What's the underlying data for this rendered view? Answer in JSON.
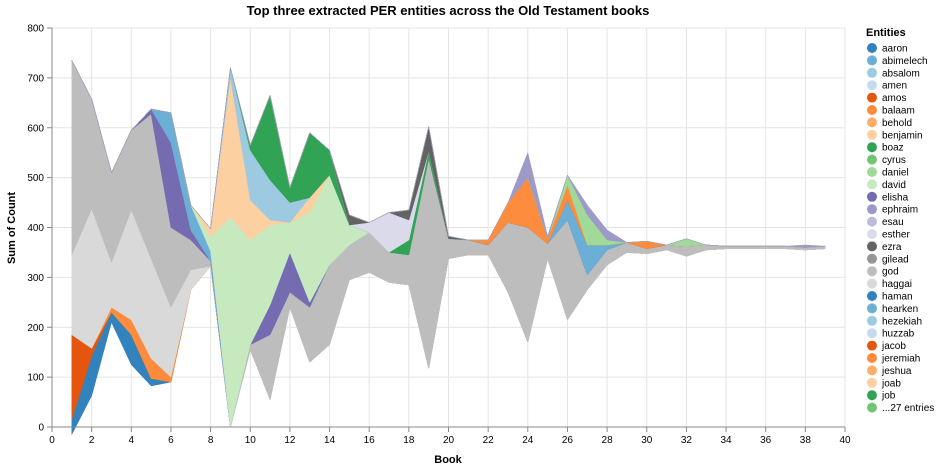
{
  "chart_data": {
    "type": "area",
    "title": "Top three extracted PER entities across the Old Testament books",
    "xlabel": "Book",
    "ylabel": "Sum of Count",
    "xlim": [
      0,
      40
    ],
    "ylim": [
      0,
      800
    ],
    "x_ticks": [
      0,
      2,
      4,
      6,
      8,
      10,
      12,
      14,
      16,
      18,
      20,
      22,
      24,
      26,
      28,
      30,
      32,
      34,
      36,
      38,
      40
    ],
    "y_ticks": [
      0,
      100,
      200,
      300,
      400,
      500,
      600,
      700,
      800
    ],
    "grid": true,
    "stack": "center",
    "legend_title": "Entities",
    "legend_position": "right",
    "legend": [
      {
        "name": "aaron",
        "color": "#3182bd"
      },
      {
        "name": "abimelech",
        "color": "#6baed6"
      },
      {
        "name": "absalom",
        "color": "#9ecae1"
      },
      {
        "name": "amen",
        "color": "#c6dbef"
      },
      {
        "name": "amos",
        "color": "#e6550d"
      },
      {
        "name": "balaam",
        "color": "#fd8d3c"
      },
      {
        "name": "behold",
        "color": "#fdae6b"
      },
      {
        "name": "benjamin",
        "color": "#fdd0a2"
      },
      {
        "name": "boaz",
        "color": "#31a354"
      },
      {
        "name": "cyrus",
        "color": "#74c476"
      },
      {
        "name": "daniel",
        "color": "#a1d99b"
      },
      {
        "name": "david",
        "color": "#c7e9c0"
      },
      {
        "name": "elisha",
        "color": "#756bb1"
      },
      {
        "name": "ephraim",
        "color": "#9e9ac8"
      },
      {
        "name": "esau",
        "color": "#bcbddc"
      },
      {
        "name": "esther",
        "color": "#dadaeb"
      },
      {
        "name": "ezra",
        "color": "#636363"
      },
      {
        "name": "gilead",
        "color": "#969696"
      },
      {
        "name": "god",
        "color": "#bdbdbd"
      },
      {
        "name": "haggai",
        "color": "#d9d9d9"
      },
      {
        "name": "haman",
        "color": "#3182bd"
      },
      {
        "name": "hearken",
        "color": "#6baed6"
      },
      {
        "name": "hezekiah",
        "color": "#9ecae1"
      },
      {
        "name": "huzzab",
        "color": "#c6dbef"
      },
      {
        "name": "jacob",
        "color": "#e6550d"
      },
      {
        "name": "jeremiah",
        "color": "#fd8d3c"
      },
      {
        "name": "jeshua",
        "color": "#fdae6b"
      },
      {
        "name": "joab",
        "color": "#fdd0a2"
      },
      {
        "name": "job",
        "color": "#31a354"
      },
      {
        "name": "...27 entries",
        "color": "#74c476"
      }
    ],
    "series": [
      {
        "name": "aaron",
        "color": "#3182bd",
        "points": [
          [
            1,
            30
          ],
          [
            2,
            80
          ],
          [
            3,
            20
          ],
          [
            4,
            60
          ],
          [
            5,
            15
          ]
        ]
      },
      {
        "name": "amos",
        "color": "#e6550d",
        "points": [
          [
            1,
            170
          ],
          [
            2,
            15
          ]
        ]
      },
      {
        "name": "balaam",
        "color": "#fd8d3c",
        "points": [
          [
            3,
            10
          ],
          [
            4,
            30
          ],
          [
            5,
            40
          ],
          [
            6,
            10
          ]
        ]
      },
      {
        "name": "haggai",
        "color": "#d9d9d9",
        "points": [
          [
            1,
            160
          ],
          [
            2,
            280
          ],
          [
            3,
            90
          ],
          [
            4,
            220
          ],
          [
            5,
            200
          ],
          [
            6,
            140
          ],
          [
            7,
            40
          ]
        ]
      },
      {
        "name": "god",
        "color": "#bdbdbd",
        "points": [
          [
            1,
            390
          ],
          [
            2,
            220
          ],
          [
            3,
            180
          ],
          [
            4,
            160
          ],
          [
            5,
            290
          ],
          [
            6,
            160
          ],
          [
            7,
            60
          ],
          [
            8,
            10
          ],
          [
            10,
            10
          ],
          [
            11,
            130
          ],
          [
            12,
            30
          ],
          [
            13,
            110
          ],
          [
            14,
            160
          ],
          [
            15,
            70
          ],
          [
            16,
            80
          ],
          [
            17,
            60
          ],
          [
            18,
            60
          ],
          [
            19,
            420
          ],
          [
            20,
            40
          ],
          [
            21,
            30
          ],
          [
            22,
            20
          ],
          [
            23,
            140
          ],
          [
            24,
            230
          ],
          [
            25,
            30
          ],
          [
            26,
            200
          ],
          [
            27,
            30
          ],
          [
            28,
            30
          ],
          [
            29,
            20
          ],
          [
            30,
            10
          ],
          [
            31,
            10
          ],
          [
            32,
            20
          ],
          [
            33,
            10
          ],
          [
            34,
            5
          ],
          [
            35,
            5
          ],
          [
            36,
            5
          ],
          [
            37,
            5
          ],
          [
            38,
            5
          ],
          [
            39,
            5
          ]
        ]
      },
      {
        "name": "elisha",
        "color": "#756bb1",
        "points": [
          [
            5,
            10
          ],
          [
            6,
            170
          ],
          [
            7,
            20
          ],
          [
            11,
            60
          ],
          [
            12,
            80
          ],
          [
            13,
            10
          ]
        ]
      },
      {
        "name": "abimelech",
        "color": "#6baed6",
        "points": [
          [
            6,
            60
          ],
          [
            7,
            50
          ],
          [
            8,
            20
          ],
          [
            26,
            40
          ],
          [
            27,
            60
          ],
          [
            28,
            10
          ]
        ]
      },
      {
        "name": "david",
        "color": "#c7e9c0",
        "points": [
          [
            8,
            30
          ],
          [
            9,
            420
          ],
          [
            10,
            210
          ],
          [
            11,
            160
          ],
          [
            12,
            60
          ],
          [
            13,
            180
          ],
          [
            14,
            180
          ],
          [
            15,
            40
          ]
        ]
      },
      {
        "name": "joab",
        "color": "#fdd0a2",
        "points": [
          [
            8,
            15
          ],
          [
            9,
            280
          ],
          [
            10,
            80
          ],
          [
            11,
            10
          ],
          [
            13,
            30
          ]
        ]
      },
      {
        "name": "absalom",
        "color": "#9ecae1",
        "points": [
          [
            9,
            20
          ],
          [
            10,
            100
          ],
          [
            11,
            80
          ],
          [
            12,
            40
          ]
        ]
      },
      {
        "name": "boaz",
        "color": "#31a354",
        "points": [
          [
            10,
            10
          ],
          [
            11,
            170
          ],
          [
            12,
            30
          ],
          [
            13,
            130
          ],
          [
            14,
            50
          ],
          [
            18,
            30
          ],
          [
            19,
            15
          ]
        ]
      },
      {
        "name": "esther",
        "color": "#dadaeb",
        "points": [
          [
            16,
            20
          ],
          [
            17,
            80
          ],
          [
            18,
            40
          ]
        ]
      },
      {
        "name": "ezra",
        "color": "#636363",
        "points": [
          [
            15,
            20
          ],
          [
            18,
            20
          ],
          [
            19,
            50
          ],
          [
            20,
            5
          ]
        ]
      },
      {
        "name": "jeremiah",
        "color": "#fd8d3c",
        "points": [
          [
            22,
            10
          ],
          [
            23,
            40
          ],
          [
            24,
            100
          ],
          [
            25,
            10
          ],
          [
            26,
            30
          ],
          [
            30,
            15
          ]
        ]
      },
      {
        "name": "daniel",
        "color": "#a1d99b",
        "points": [
          [
            26,
            20
          ],
          [
            27,
            60
          ],
          [
            28,
            10
          ],
          [
            32,
            15
          ]
        ]
      },
      {
        "name": "ephraim",
        "color": "#9e9ac8",
        "points": [
          [
            24,
            50
          ],
          [
            25,
            5
          ],
          [
            27,
            20
          ],
          [
            28,
            20
          ],
          [
            38,
            5
          ]
        ]
      }
    ]
  }
}
